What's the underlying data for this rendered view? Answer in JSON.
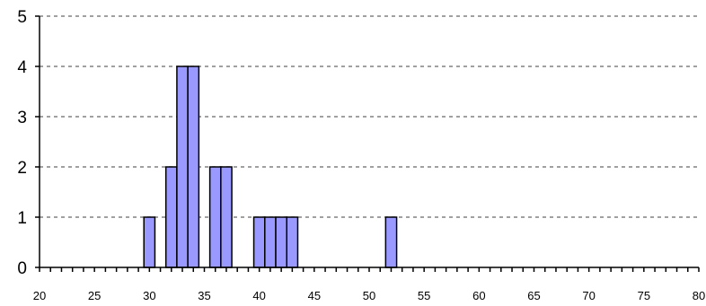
{
  "chart_data": {
    "type": "bar",
    "subtype": "histogram",
    "title": "",
    "xlabel": "",
    "ylabel": "",
    "xlim": [
      20,
      80
    ],
    "ylim": [
      0,
      5
    ],
    "bin_width": 1,
    "x_ticks": [
      20,
      25,
      30,
      35,
      40,
      45,
      50,
      55,
      60,
      65,
      70,
      75,
      80
    ],
    "x_tick_labels": [
      "20",
      "25",
      "30",
      "35",
      "40",
      "45",
      "50",
      "55",
      "60",
      "65",
      "70",
      "75",
      "80"
    ],
    "y_ticks": [
      0,
      1,
      2,
      3,
      4,
      5
    ],
    "y_tick_labels": [
      "0",
      "1",
      "2",
      "3",
      "4",
      "5"
    ],
    "grid": "horizontal dashed",
    "legend": "none",
    "bins": [
      {
        "x": 30,
        "count": 1
      },
      {
        "x": 32,
        "count": 2
      },
      {
        "x": 33,
        "count": 4
      },
      {
        "x": 34,
        "count": 4
      },
      {
        "x": 36,
        "count": 2
      },
      {
        "x": 37,
        "count": 2
      },
      {
        "x": 40,
        "count": 1
      },
      {
        "x": 41,
        "count": 1
      },
      {
        "x": 42,
        "count": 1
      },
      {
        "x": 43,
        "count": 1
      },
      {
        "x": 52,
        "count": 1
      }
    ],
    "colors": {
      "bar_fill": "#9999ff",
      "bar_stroke": "#000000",
      "grid": "#808080",
      "axis": "#000000"
    }
  }
}
